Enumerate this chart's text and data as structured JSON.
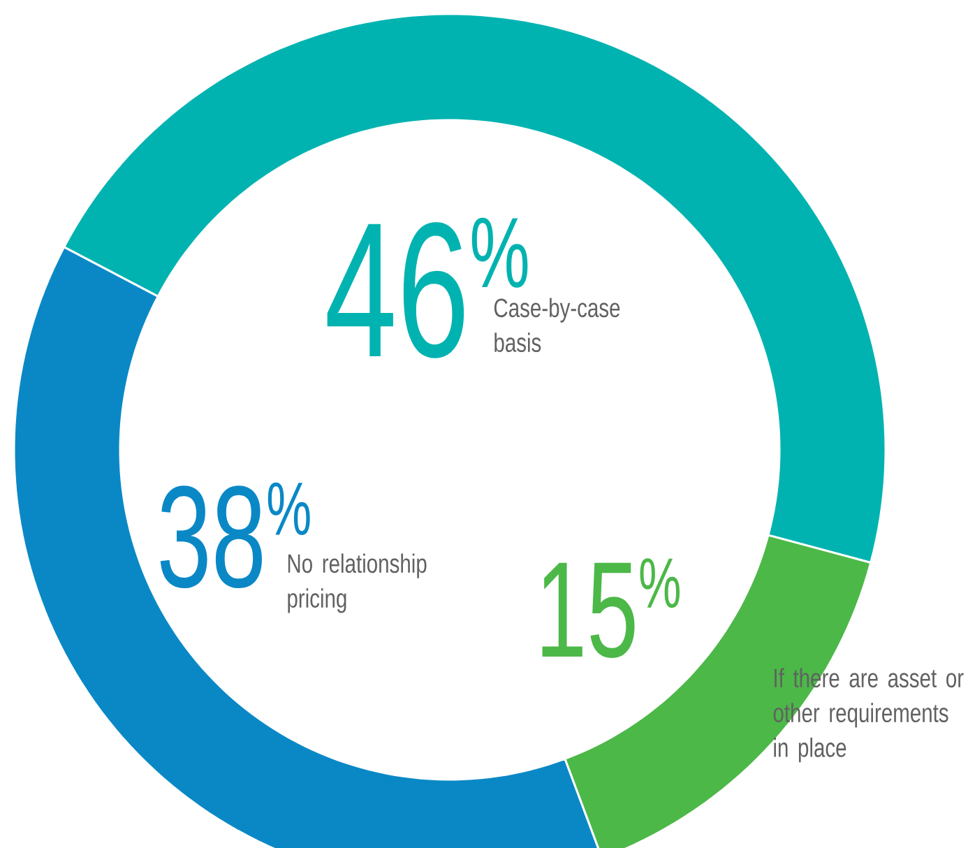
{
  "chart_data": {
    "type": "donut",
    "categories": [
      "Case-by-case basis",
      "No relationship pricing",
      "If there are asset or other requirements in place"
    ],
    "values": [
      46,
      38,
      15
    ],
    "colors": [
      "#00b3b0",
      "#0a88c6",
      "#4cb848"
    ],
    "value_labels": [
      "46$^{%}$",
      "38$^{%}$",
      "15$^{%}$"
    ]
  }
}
